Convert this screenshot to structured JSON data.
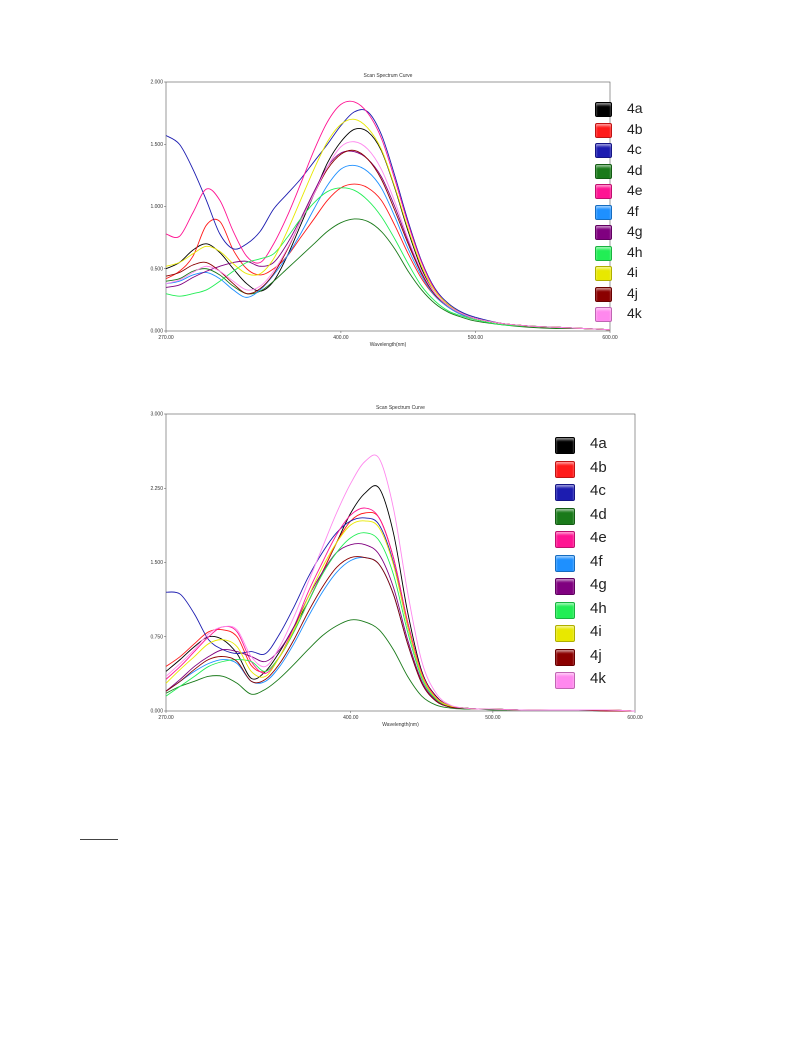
{
  "chart_data": [
    {
      "type": "line",
      "title": "Scan Spectrum Curve",
      "xlabel": "Wavelength(nm)",
      "ylabel": "",
      "xlim": [
        270,
        600
      ],
      "ylim": [
        0,
        2
      ],
      "x_ticks": [
        270,
        400,
        500,
        600
      ],
      "x_tick_labels": [
        "270.00",
        "400.00",
        "500.00",
        "600.00"
      ],
      "y_ticks": [
        0,
        0.5,
        1,
        1.5,
        2
      ],
      "y_tick_labels": [
        "0.000",
        "0.500",
        "1.000",
        "1.500",
        "2.000"
      ],
      "grid": false,
      "legend_position": "right",
      "x": [
        270,
        280,
        290,
        300,
        310,
        320,
        330,
        340,
        350,
        360,
        370,
        380,
        390,
        400,
        410,
        420,
        430,
        440,
        450,
        460,
        470,
        480,
        490,
        500,
        520,
        540,
        560,
        580,
        600
      ],
      "series": [
        {
          "name": "4a",
          "color": "#000000",
          "values": [
            0.5,
            0.55,
            0.65,
            0.7,
            0.63,
            0.5,
            0.38,
            0.32,
            0.4,
            0.6,
            0.85,
            1.1,
            1.35,
            1.52,
            1.62,
            1.6,
            1.45,
            1.15,
            0.8,
            0.5,
            0.3,
            0.2,
            0.14,
            0.1,
            0.06,
            0.04,
            0.03,
            0.02,
            0.01
          ]
        },
        {
          "name": "4b",
          "color": "#ff1a1a",
          "values": [
            0.42,
            0.48,
            0.6,
            0.85,
            0.88,
            0.65,
            0.5,
            0.45,
            0.5,
            0.6,
            0.75,
            0.9,
            1.05,
            1.15,
            1.18,
            1.15,
            1.05,
            0.85,
            0.62,
            0.42,
            0.28,
            0.19,
            0.13,
            0.1,
            0.06,
            0.04,
            0.03,
            0.02,
            0.01
          ]
        },
        {
          "name": "4c",
          "color": "#1c1cb0",
          "values": [
            1.57,
            1.5,
            1.3,
            1.05,
            0.78,
            0.66,
            0.7,
            0.8,
            0.98,
            1.1,
            1.22,
            1.36,
            1.5,
            1.65,
            1.76,
            1.76,
            1.58,
            1.25,
            0.88,
            0.56,
            0.34,
            0.22,
            0.15,
            0.11,
            0.06,
            0.04,
            0.03,
            0.02,
            0.01
          ]
        },
        {
          "name": "4d",
          "color": "#1a7a1a",
          "values": [
            0.4,
            0.42,
            0.48,
            0.5,
            0.45,
            0.36,
            0.3,
            0.32,
            0.4,
            0.5,
            0.6,
            0.7,
            0.8,
            0.87,
            0.9,
            0.88,
            0.8,
            0.66,
            0.48,
            0.33,
            0.22,
            0.15,
            0.11,
            0.08,
            0.05,
            0.03,
            0.02,
            0.02,
            0.01
          ]
        },
        {
          "name": "4e",
          "color": "#ff1493",
          "values": [
            0.78,
            0.76,
            0.95,
            1.14,
            1.05,
            0.8,
            0.6,
            0.55,
            0.7,
            0.92,
            1.18,
            1.45,
            1.68,
            1.82,
            1.84,
            1.75,
            1.55,
            1.22,
            0.86,
            0.55,
            0.33,
            0.21,
            0.14,
            0.1,
            0.06,
            0.04,
            0.03,
            0.02,
            0.01
          ]
        },
        {
          "name": "4f",
          "color": "#1e90ff",
          "values": [
            0.38,
            0.4,
            0.45,
            0.47,
            0.42,
            0.33,
            0.27,
            0.33,
            0.45,
            0.6,
            0.78,
            0.98,
            1.17,
            1.3,
            1.33,
            1.28,
            1.15,
            0.92,
            0.66,
            0.44,
            0.28,
            0.19,
            0.13,
            0.1,
            0.06,
            0.04,
            0.03,
            0.02,
            0.01
          ]
        },
        {
          "name": "4g",
          "color": "#800080",
          "values": [
            0.35,
            0.37,
            0.43,
            0.48,
            0.52,
            0.55,
            0.56,
            0.52,
            0.55,
            0.7,
            0.9,
            1.12,
            1.32,
            1.43,
            1.44,
            1.38,
            1.24,
            1.0,
            0.72,
            0.47,
            0.3,
            0.2,
            0.14,
            0.1,
            0.06,
            0.04,
            0.03,
            0.02,
            0.01
          ]
        },
        {
          "name": "4h",
          "color": "#22ee55",
          "values": [
            0.3,
            0.28,
            0.3,
            0.33,
            0.4,
            0.48,
            0.55,
            0.58,
            0.62,
            0.75,
            0.9,
            1.03,
            1.12,
            1.15,
            1.13,
            1.05,
            0.92,
            0.74,
            0.54,
            0.36,
            0.24,
            0.16,
            0.12,
            0.09,
            0.05,
            0.04,
            0.03,
            0.02,
            0.01
          ]
        },
        {
          "name": "4i",
          "color": "#e8e800",
          "values": [
            0.52,
            0.55,
            0.62,
            0.68,
            0.64,
            0.54,
            0.46,
            0.46,
            0.58,
            0.8,
            1.05,
            1.3,
            1.52,
            1.66,
            1.7,
            1.63,
            1.46,
            1.16,
            0.82,
            0.52,
            0.32,
            0.21,
            0.14,
            0.1,
            0.06,
            0.04,
            0.03,
            0.02,
            0.01
          ]
        },
        {
          "name": "4j",
          "color": "#8b0000",
          "values": [
            0.44,
            0.47,
            0.53,
            0.55,
            0.48,
            0.38,
            0.3,
            0.34,
            0.46,
            0.65,
            0.88,
            1.1,
            1.3,
            1.42,
            1.45,
            1.38,
            1.22,
            0.97,
            0.7,
            0.46,
            0.29,
            0.2,
            0.14,
            0.1,
            0.06,
            0.04,
            0.03,
            0.02,
            0.01
          ]
        },
        {
          "name": "4k",
          "color": "#ff88ee",
          "values": [
            0.38,
            0.41,
            0.47,
            0.52,
            0.48,
            0.4,
            0.33,
            0.36,
            0.48,
            0.66,
            0.88,
            1.1,
            1.32,
            1.48,
            1.52,
            1.46,
            1.3,
            1.04,
            0.74,
            0.48,
            0.3,
            0.2,
            0.14,
            0.1,
            0.06,
            0.04,
            0.03,
            0.02,
            0.01
          ]
        }
      ]
    },
    {
      "type": "line",
      "title": "Scan Spectrum Curve",
      "xlabel": "Wavelength(nm)",
      "ylabel": "",
      "xlim": [
        270,
        600
      ],
      "ylim": [
        0,
        3
      ],
      "x_ticks": [
        270,
        400,
        500,
        600
      ],
      "x_tick_labels": [
        "270.00",
        "400.00",
        "500.00",
        "600.00"
      ],
      "y_ticks": [
        0,
        0.75,
        1.5,
        2.25,
        3
      ],
      "y_tick_labels": [
        "0.000",
        "0.750",
        "1.500",
        "2.250",
        "3.000"
      ],
      "grid": false,
      "legend_position": "top-right",
      "x": [
        270,
        280,
        290,
        300,
        310,
        320,
        330,
        340,
        350,
        360,
        370,
        380,
        390,
        400,
        410,
        420,
        430,
        440,
        450,
        460,
        470,
        480,
        490,
        500,
        520,
        540,
        560,
        580,
        600
      ],
      "series": [
        {
          "name": "4a",
          "color": "#000000",
          "values": [
            0.4,
            0.52,
            0.65,
            0.75,
            0.72,
            0.58,
            0.33,
            0.4,
            0.6,
            0.85,
            1.1,
            1.4,
            1.7,
            2.0,
            2.2,
            2.25,
            1.8,
            1.0,
            0.4,
            0.15,
            0.05,
            0.03,
            0.02,
            0.02,
            0.01,
            0.01,
            0.01,
            0.01,
            0.0
          ]
        },
        {
          "name": "4b",
          "color": "#ff1a1a",
          "values": [
            0.45,
            0.55,
            0.68,
            0.8,
            0.82,
            0.75,
            0.46,
            0.4,
            0.55,
            0.8,
            1.1,
            1.4,
            1.7,
            1.92,
            2.0,
            1.95,
            1.55,
            0.9,
            0.38,
            0.14,
            0.05,
            0.03,
            0.02,
            0.02,
            0.01,
            0.01,
            0.01,
            0.01,
            0.0
          ]
        },
        {
          "name": "4c",
          "color": "#1c1cb0",
          "values": [
            1.2,
            1.18,
            0.98,
            0.72,
            0.62,
            0.58,
            0.6,
            0.58,
            0.78,
            1.05,
            1.35,
            1.6,
            1.8,
            1.92,
            1.95,
            1.88,
            1.5,
            0.86,
            0.36,
            0.13,
            0.05,
            0.03,
            0.02,
            0.02,
            0.01,
            0.01,
            0.01,
            0.01,
            0.0
          ]
        },
        {
          "name": "4d",
          "color": "#1a7a1a",
          "values": [
            0.18,
            0.25,
            0.3,
            0.35,
            0.35,
            0.28,
            0.17,
            0.22,
            0.33,
            0.47,
            0.62,
            0.76,
            0.86,
            0.92,
            0.9,
            0.82,
            0.62,
            0.35,
            0.15,
            0.06,
            0.03,
            0.02,
            0.02,
            0.01,
            0.01,
            0.01,
            0.01,
            0.0,
            0.0
          ]
        },
        {
          "name": "4e",
          "color": "#ff1493",
          "values": [
            0.32,
            0.45,
            0.6,
            0.75,
            0.85,
            0.8,
            0.5,
            0.38,
            0.55,
            0.85,
            1.2,
            1.5,
            1.78,
            1.98,
            2.05,
            1.95,
            1.55,
            0.9,
            0.38,
            0.14,
            0.05,
            0.03,
            0.02,
            0.02,
            0.01,
            0.01,
            0.01,
            0.01,
            0.0
          ]
        },
        {
          "name": "4f",
          "color": "#1e90ff",
          "values": [
            0.2,
            0.3,
            0.4,
            0.48,
            0.52,
            0.48,
            0.3,
            0.3,
            0.45,
            0.68,
            0.95,
            1.2,
            1.4,
            1.52,
            1.55,
            1.48,
            1.18,
            0.68,
            0.28,
            0.1,
            0.04,
            0.03,
            0.02,
            0.02,
            0.01,
            0.01,
            0.01,
            0.0,
            0.0
          ]
        },
        {
          "name": "4g",
          "color": "#800080",
          "values": [
            0.2,
            0.32,
            0.45,
            0.55,
            0.62,
            0.6,
            0.55,
            0.5,
            0.62,
            0.85,
            1.15,
            1.4,
            1.6,
            1.68,
            1.68,
            1.58,
            1.25,
            0.72,
            0.3,
            0.11,
            0.04,
            0.03,
            0.02,
            0.02,
            0.01,
            0.01,
            0.01,
            0.0,
            0.0
          ]
        },
        {
          "name": "4h",
          "color": "#22ee55",
          "values": [
            0.15,
            0.25,
            0.35,
            0.45,
            0.5,
            0.52,
            0.5,
            0.4,
            0.55,
            0.8,
            1.1,
            1.38,
            1.6,
            1.75,
            1.8,
            1.72,
            1.38,
            0.8,
            0.33,
            0.12,
            0.05,
            0.03,
            0.02,
            0.02,
            0.01,
            0.01,
            0.01,
            0.0,
            0.0
          ]
        },
        {
          "name": "4i",
          "color": "#e8e800",
          "values": [
            0.28,
            0.42,
            0.55,
            0.68,
            0.72,
            0.65,
            0.4,
            0.35,
            0.55,
            0.82,
            1.15,
            1.45,
            1.7,
            1.88,
            1.92,
            1.85,
            1.48,
            0.86,
            0.36,
            0.13,
            0.05,
            0.03,
            0.02,
            0.02,
            0.01,
            0.01,
            0.01,
            0.01,
            0.0
          ]
        },
        {
          "name": "4j",
          "color": "#8b0000",
          "values": [
            0.2,
            0.3,
            0.42,
            0.52,
            0.55,
            0.5,
            0.3,
            0.32,
            0.48,
            0.72,
            1.0,
            1.25,
            1.45,
            1.55,
            1.55,
            1.48,
            1.18,
            0.68,
            0.28,
            0.1,
            0.04,
            0.03,
            0.02,
            0.02,
            0.01,
            0.01,
            0.01,
            0.0,
            0.0
          ]
        },
        {
          "name": "4k",
          "color": "#ff88ee",
          "values": [
            0.35,
            0.48,
            0.62,
            0.78,
            0.85,
            0.82,
            0.55,
            0.45,
            0.65,
            0.95,
            1.3,
            1.65,
            2.0,
            2.3,
            2.52,
            2.55,
            2.05,
            1.2,
            0.5,
            0.18,
            0.06,
            0.03,
            0.02,
            0.02,
            0.01,
            0.01,
            0.01,
            0.01,
            0.0
          ]
        }
      ]
    }
  ]
}
